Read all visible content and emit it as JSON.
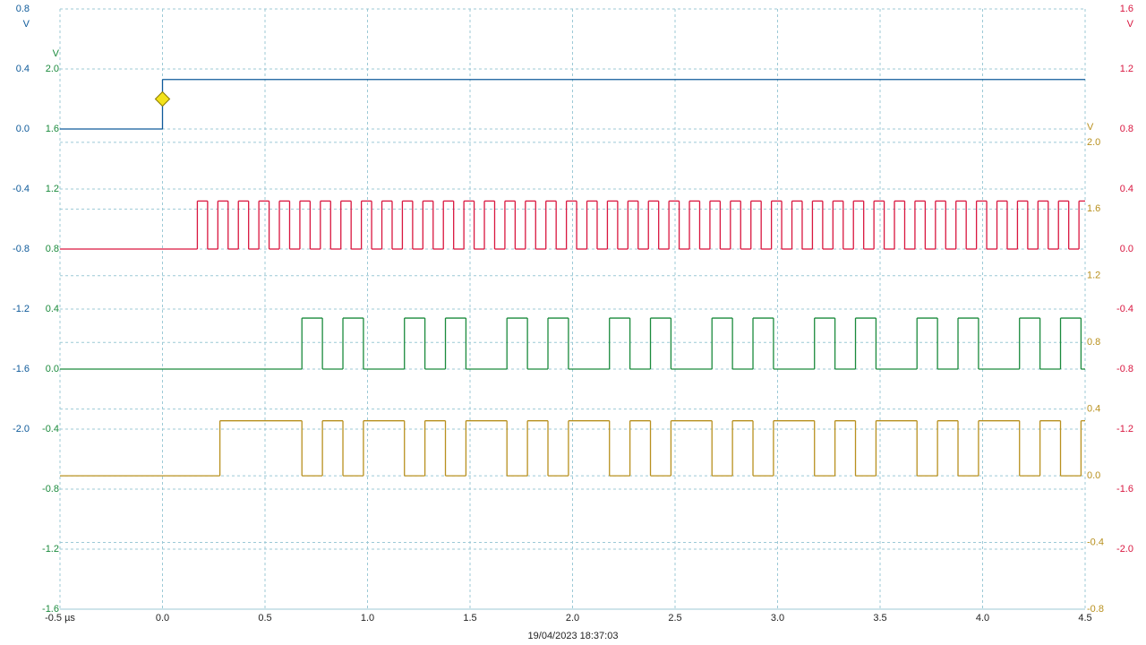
{
  "chart_data": {
    "type": "line",
    "footer": "19/04/2023 18:37:03",
    "grid": true,
    "xlim": [
      -0.5,
      4.5
    ],
    "xticks": [
      {
        "value": -0.5,
        "label": "-0.5 µs"
      },
      {
        "value": 0,
        "label": "0.0"
      },
      0.5,
      {
        "value": 1,
        "label": "1.0"
      },
      1.5,
      {
        "value": 2,
        "label": "2.0"
      },
      2.5,
      {
        "value": 3,
        "label": "3.0"
      },
      3.5,
      {
        "value": 4,
        "label": "4.0"
      },
      4.5
    ],
    "ylim": [
      -3.2,
      0.8
    ],
    "yunit": "V",
    "yticks": [
      0.8,
      0.4,
      {
        "value": 0,
        "label": "0.0"
      },
      -0.4,
      -0.8,
      -1.2,
      -1.6,
      {
        "value": -2,
        "label": "-2.0"
      }
    ],
    "y2lim": [
      -1.6,
      2.4
    ],
    "y2unit": "V",
    "y2ticks": [
      {
        "value": 2,
        "label": "2.0"
      },
      1.6,
      1.2,
      0.8,
      0.4,
      {
        "value": 0,
        "label": "0.0"
      },
      -0.4,
      -0.8,
      -1.2,
      -1.6
    ],
    "y3lim": [
      -2.4,
      1.6
    ],
    "y3unit": "V",
    "y3ticks": [
      1.6,
      1.2,
      0.8,
      0.4,
      {
        "value": 0,
        "label": "0.0"
      },
      -0.4,
      -0.8,
      -1.2,
      -1.6,
      {
        "value": -2,
        "label": "-2.0"
      }
    ],
    "y4lim": [
      -0.8,
      2.8
    ],
    "y4unit": "V",
    "y4ticks": [
      {
        "value": 2,
        "label": "2.0"
      },
      1.6,
      1.2,
      0.8,
      0.4,
      {
        "value": 0,
        "label": "0.0"
      },
      -0.4,
      -0.8
    ],
    "trigger": {
      "x": 0,
      "value": 0.2
    },
    "series": [
      {
        "color": "#0e5a9a",
        "axis": "y",
        "x": [
          -0.5,
          0
        ],
        "values": [
          0,
          0.33
        ]
      },
      {
        "color": "#d9163f",
        "axis": "y3",
        "x": [
          -0.5,
          0.17,
          0.22,
          0.27,
          0.32,
          0.37,
          0.42,
          0.47,
          0.52,
          0.57,
          0.62,
          0.67,
          0.72,
          0.77,
          0.82,
          0.87,
          0.92,
          0.97,
          1.02,
          1.07,
          1.12,
          1.17,
          1.22,
          1.27,
          1.32,
          1.37,
          1.42,
          1.47,
          1.52,
          1.57,
          1.62,
          1.67,
          1.72,
          1.77,
          1.82,
          1.87,
          1.92,
          1.97,
          2.02,
          2.07,
          2.12,
          2.17,
          2.22,
          2.27,
          2.32,
          2.37,
          2.42,
          2.47,
          2.52,
          2.57,
          2.62,
          2.67,
          2.72,
          2.77,
          2.82,
          2.87,
          2.92,
          2.97,
          3.02,
          3.07,
          3.12,
          3.17,
          3.22,
          3.27,
          3.32,
          3.37,
          3.42,
          3.47,
          3.52,
          3.57,
          3.62,
          3.67,
          3.72,
          3.77,
          3.82,
          3.87,
          3.92,
          3.97,
          4.02,
          4.07,
          4.12,
          4.17,
          4.22,
          4.27,
          4.32,
          4.37,
          4.42,
          4.47
        ],
        "values": [
          0,
          0.32,
          0,
          0.32,
          0,
          0.32,
          0,
          0.32,
          0,
          0.32,
          0,
          0.32,
          0,
          0.32,
          0,
          0.32,
          0,
          0.32,
          0,
          0.32,
          0,
          0.32,
          0,
          0.32,
          0,
          0.32,
          0,
          0.32,
          0,
          0.32,
          0,
          0.32,
          0,
          0.32,
          0,
          0.32,
          0,
          0.32,
          0,
          0.32,
          0,
          0.32,
          0,
          0.32,
          0,
          0.32,
          0,
          0.32,
          0,
          0.32,
          0,
          0.32,
          0,
          0.32,
          0,
          0.32,
          0,
          0.32,
          0,
          0.32,
          0,
          0.32,
          0,
          0.32,
          0,
          0.32,
          0,
          0.32,
          0,
          0.32,
          0,
          0.32,
          0,
          0.32,
          0,
          0.32,
          0,
          0.32,
          0,
          0.32,
          0,
          0.32,
          0,
          0.32,
          0,
          0.32,
          0,
          0.32
        ]
      },
      {
        "color": "#1a8a3c",
        "axis": "y2",
        "x": [
          -0.5,
          0.68,
          0.78,
          0.88,
          0.98,
          1.18,
          1.28,
          1.38,
          1.48,
          1.68,
          1.78,
          1.88,
          1.98,
          2.18,
          2.28,
          2.38,
          2.48,
          2.68,
          2.78,
          2.88,
          2.98,
          3.18,
          3.28,
          3.38,
          3.48,
          3.68,
          3.78,
          3.88,
          3.98,
          4.18,
          4.28,
          4.38,
          4.48
        ],
        "values": [
          0,
          0.34,
          0,
          0.34,
          0,
          0.34,
          0,
          0.34,
          0,
          0.34,
          0,
          0.34,
          0,
          0.34,
          0,
          0.34,
          0,
          0.34,
          0,
          0.34,
          0,
          0.34,
          0,
          0.34,
          0,
          0.34,
          0,
          0.34,
          0,
          0.34,
          0,
          0.34,
          0
        ]
      },
      {
        "color": "#b8901e",
        "axis": "y4",
        "x": [
          -0.5,
          0.28,
          0.68,
          0.78,
          0.88,
          0.98,
          1.18,
          1.28,
          1.38,
          1.48,
          1.68,
          1.78,
          1.88,
          1.98,
          2.18,
          2.28,
          2.38,
          2.48,
          2.68,
          2.78,
          2.88,
          2.98,
          3.18,
          3.28,
          3.38,
          3.48,
          3.68,
          3.78,
          3.88,
          3.98,
          4.18,
          4.28,
          4.38,
          4.48
        ],
        "values": [
          0,
          0.33,
          0,
          0.33,
          0,
          0.33,
          0,
          0.33,
          0,
          0.33,
          0,
          0.33,
          0,
          0.33,
          0,
          0.33,
          0,
          0.33,
          0,
          0.33,
          0,
          0.33,
          0,
          0.33,
          0,
          0.33,
          0,
          0.33,
          0,
          0.33,
          0,
          0.33,
          0,
          0.33
        ]
      }
    ]
  }
}
